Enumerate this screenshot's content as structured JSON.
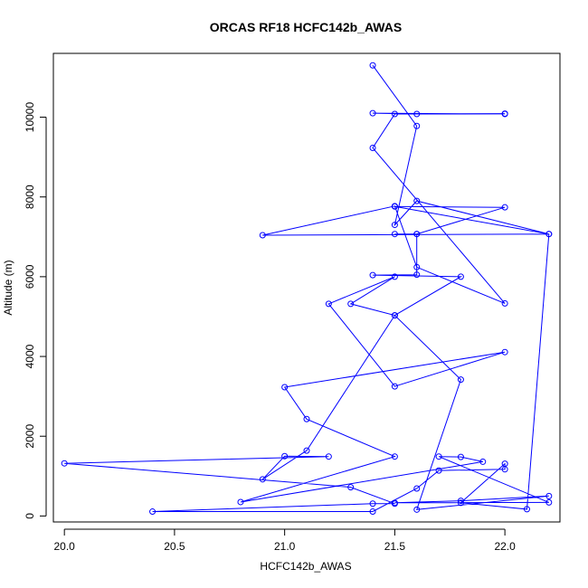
{
  "chart_data": {
    "type": "scatter",
    "title": "ORCAS RF18 HCFC142b_AWAS",
    "xlabel": "HCFC142b_AWAS",
    "ylabel": "Altitude (m)",
    "xlim": [
      19.95,
      22.25
    ],
    "ylim": [
      -150,
      11600
    ],
    "xticks": [
      20.0,
      20.5,
      21.0,
      21.5,
      22.0
    ],
    "xtick_labels": [
      "20.0",
      "20.5",
      "21.0",
      "21.5",
      "22.0"
    ],
    "yticks": [
      0,
      2000,
      4000,
      6000,
      8000,
      10000
    ],
    "ytick_labels": [
      "0",
      "2000",
      "4000",
      "6000",
      "8000",
      "10000"
    ],
    "grid": false,
    "line_color": "#0000ff",
    "series": [
      {
        "x": [
          21.4,
          21.6,
          21.5,
          21.6,
          22.2,
          22.1,
          21.8,
          22.0,
          22.0,
          21.7,
          21.6,
          21.4,
          20.4,
          21.4,
          21.5,
          21.3,
          20.0,
          21.2,
          21.0,
          20.9,
          21.1,
          21.5,
          21.8,
          21.6,
          22.2,
          21.8,
          21.5,
          22.2,
          21.7,
          21.8,
          21.9,
          20.8,
          21.5,
          21.1,
          21.0,
          22.0,
          21.5,
          21.2,
          21.5,
          21.3,
          21.5,
          21.8,
          21.4,
          21.6,
          21.6,
          21.5,
          21.6,
          22.0,
          21.5,
          22.2,
          20.9,
          21.5,
          21.6,
          22.0,
          21.4,
          21.5,
          22.0,
          21.4,
          21.6,
          22.0
        ],
        "y": [
          11300,
          9780,
          7300,
          7900,
          7070,
          170,
          330,
          1310,
          1170,
          1140,
          690,
          110,
          110,
          310,
          310,
          720,
          1320,
          1490,
          1500,
          920,
          1640,
          5030,
          3420,
          160,
          500,
          380,
          330,
          340,
          1490,
          1480,
          1360,
          350,
          1490,
          2430,
          3230,
          4110,
          3250,
          5320,
          6000,
          5320,
          5030,
          6000,
          6040,
          6050,
          7070,
          7070,
          7070,
          7740,
          7760,
          7070,
          7040,
          7770,
          6240,
          5330,
          9230,
          10080,
          10080,
          10100,
          10080,
          10090
        ]
      }
    ]
  }
}
